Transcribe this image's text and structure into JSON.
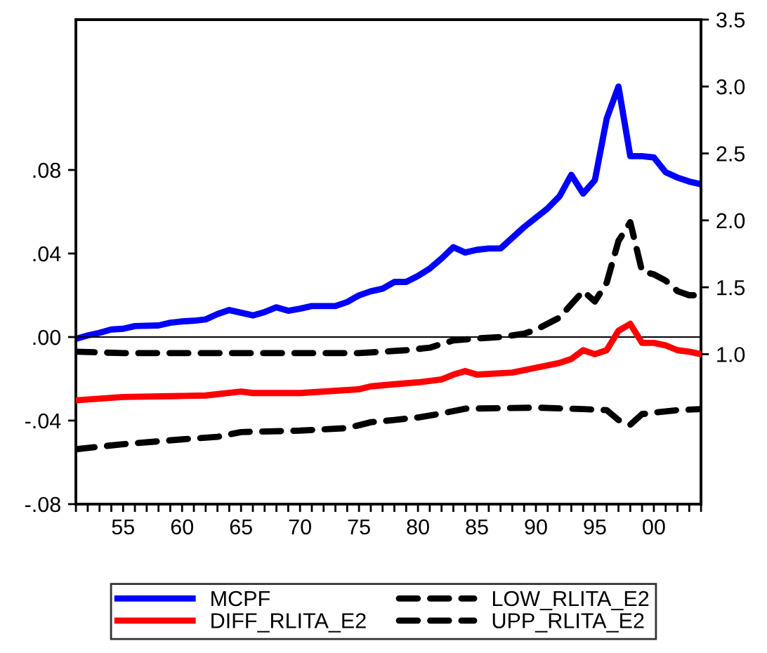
{
  "chart_data": {
    "type": "line",
    "xlim": [
      1951,
      2004
    ],
    "xticks": [
      {
        "value": 1951,
        "label": null
      },
      {
        "value": 1952,
        "label": null
      },
      {
        "value": 1953,
        "label": null
      },
      {
        "value": 1954,
        "label": null
      },
      {
        "value": 1955,
        "label": "55"
      },
      {
        "value": 1956,
        "label": null
      },
      {
        "value": 1957,
        "label": null
      },
      {
        "value": 1958,
        "label": null
      },
      {
        "value": 1959,
        "label": null
      },
      {
        "value": 1960,
        "label": "60"
      },
      {
        "value": 1961,
        "label": null
      },
      {
        "value": 1962,
        "label": null
      },
      {
        "value": 1963,
        "label": null
      },
      {
        "value": 1964,
        "label": null
      },
      {
        "value": 1965,
        "label": "65"
      },
      {
        "value": 1966,
        "label": null
      },
      {
        "value": 1967,
        "label": null
      },
      {
        "value": 1968,
        "label": null
      },
      {
        "value": 1969,
        "label": null
      },
      {
        "value": 1970,
        "label": "70"
      },
      {
        "value": 1971,
        "label": null
      },
      {
        "value": 1972,
        "label": null
      },
      {
        "value": 1973,
        "label": null
      },
      {
        "value": 1974,
        "label": null
      },
      {
        "value": 1975,
        "label": "75"
      },
      {
        "value": 1976,
        "label": null
      },
      {
        "value": 1977,
        "label": null
      },
      {
        "value": 1978,
        "label": null
      },
      {
        "value": 1979,
        "label": null
      },
      {
        "value": 1980,
        "label": "80"
      },
      {
        "value": 1981,
        "label": null
      },
      {
        "value": 1982,
        "label": null
      },
      {
        "value": 1983,
        "label": null
      },
      {
        "value": 1984,
        "label": null
      },
      {
        "value": 1985,
        "label": "85"
      },
      {
        "value": 1986,
        "label": null
      },
      {
        "value": 1987,
        "label": null
      },
      {
        "value": 1988,
        "label": null
      },
      {
        "value": 1989,
        "label": null
      },
      {
        "value": 1990,
        "label": "90"
      },
      {
        "value": 1991,
        "label": null
      },
      {
        "value": 1992,
        "label": null
      },
      {
        "value": 1993,
        "label": null
      },
      {
        "value": 1994,
        "label": null
      },
      {
        "value": 1995,
        "label": "95"
      },
      {
        "value": 1996,
        "label": null
      },
      {
        "value": 1997,
        "label": null
      },
      {
        "value": 1998,
        "label": null
      },
      {
        "value": 1999,
        "label": null
      },
      {
        "value": 2000,
        "label": "00"
      },
      {
        "value": 2001,
        "label": null
      },
      {
        "value": 2002,
        "label": null
      },
      {
        "value": 2003,
        "label": null
      },
      {
        "value": 2004,
        "label": null
      }
    ],
    "ylim": [
      -0.08,
      0.152
    ],
    "yticks": [
      {
        "value": -0.08,
        "label": "-.08"
      },
      {
        "value": -0.04,
        "label": "-.04"
      },
      {
        "value": 0,
        "label": ".00"
      },
      {
        "value": 0.04,
        "label": ".04"
      },
      {
        "value": 0.08,
        "label": ".08"
      }
    ],
    "y2lim": [
      -0.12,
      3.5
    ],
    "y2ticks": [
      {
        "value": 1.0,
        "label": "1.0"
      },
      {
        "value": 1.5,
        "label": "1.5"
      },
      {
        "value": 2.0,
        "label": "2.0"
      },
      {
        "value": 2.5,
        "label": "2.5"
      },
      {
        "value": 3.0,
        "label": "3.0"
      },
      {
        "value": 3.5,
        "label": "3.5"
      }
    ],
    "grid": false,
    "legend": "bottom",
    "marker": "none",
    "ref_lines": [
      {
        "axis": "y",
        "value": 0,
        "color": "#000000",
        "line_style": "solid"
      }
    ],
    "series": [
      {
        "name": "MCPF",
        "color": "#0000ff",
        "axis": "y2",
        "line_style": "solid",
        "x": [
          1951,
          1952,
          1953,
          1954,
          1955,
          1956,
          1958,
          1959,
          1960,
          1961,
          1962,
          1963,
          1964,
          1965,
          1966,
          1967,
          1968,
          1969,
          1970,
          1971,
          1972,
          1973,
          1974,
          1975,
          1976,
          1977,
          1978,
          1979,
          1980,
          1981,
          1982,
          1983,
          1984,
          1985,
          1986,
          1987,
          1988,
          1989,
          1990,
          1991,
          1992,
          1993,
          1994,
          1995,
          1996,
          1997,
          1998,
          1999,
          2000,
          2001,
          2002,
          2003,
          2004
        ],
        "values": [
          1.115,
          1.14,
          1.16,
          1.185,
          1.19,
          1.21,
          1.215,
          1.235,
          1.245,
          1.25,
          1.26,
          1.3,
          1.33,
          1.31,
          1.29,
          1.315,
          1.35,
          1.325,
          1.34,
          1.36,
          1.36,
          1.36,
          1.39,
          1.44,
          1.47,
          1.49,
          1.54,
          1.54,
          1.585,
          1.64,
          1.715,
          1.8,
          1.76,
          1.78,
          1.79,
          1.79,
          1.87,
          1.95,
          2.02,
          2.09,
          2.18,
          2.34,
          2.2,
          2.3,
          2.76,
          3.0,
          2.48,
          2.48,
          2.47,
          2.36,
          2.32,
          2.29,
          2.27
        ]
      },
      {
        "name": "DIFF_RLITA_E2",
        "color": "#ff0000",
        "axis": "y",
        "line_style": "solid",
        "x": [
          1951,
          1955,
          1960,
          1962,
          1965,
          1966,
          1970,
          1975,
          1976,
          1978,
          1980,
          1982,
          1983,
          1984,
          1985,
          1988,
          1990,
          1992,
          1993,
          1994,
          1995,
          1996,
          1997,
          1998,
          1999,
          2000,
          2001,
          2002,
          2003,
          2004
        ],
        "values": [
          -0.0303,
          -0.0287,
          -0.0282,
          -0.028,
          -0.0261,
          -0.0268,
          -0.0268,
          -0.025,
          -0.0236,
          -0.0226,
          -0.0217,
          -0.0203,
          -0.018,
          -0.0163,
          -0.018,
          -0.017,
          -0.0147,
          -0.0124,
          -0.0105,
          -0.0063,
          -0.0082,
          -0.0063,
          0.003,
          0.0063,
          -0.0028,
          -0.0028,
          -0.004,
          -0.0063,
          -0.007,
          -0.0082
        ]
      },
      {
        "name": "LOW_RLITA_E2",
        "color": "#000000",
        "axis": "y",
        "line_style": "dashed",
        "x": [
          1951,
          1955,
          1960,
          1963,
          1965,
          1970,
          1974,
          1976,
          1978,
          1980,
          1982,
          1984,
          1990,
          1994,
          1996,
          1997,
          1998,
          1999,
          2000,
          2002,
          2004
        ],
        "values": [
          -0.0537,
          -0.0513,
          -0.049,
          -0.0478,
          -0.0455,
          -0.0448,
          -0.0436,
          -0.0408,
          -0.0397,
          -0.0385,
          -0.0366,
          -0.0343,
          -0.0338,
          -0.0345,
          -0.035,
          -0.0397,
          -0.042,
          -0.0369,
          -0.0362,
          -0.035,
          -0.0345
        ]
      },
      {
        "name": "UPP_RLITA_E2",
        "color": "#000000",
        "axis": "y",
        "line_style": "dashed",
        "x": [
          1951,
          1955,
          1960,
          1965,
          1970,
          1975,
          1977,
          1979,
          1981,
          1983,
          1985,
          1987,
          1989,
          1990,
          1992,
          1994,
          1995,
          1996,
          1997,
          1998,
          1999,
          2000,
          2001,
          2002,
          2003,
          2004
        ],
        "values": [
          -0.007,
          -0.0077,
          -0.0077,
          -0.0077,
          -0.0077,
          -0.0077,
          -0.007,
          -0.0063,
          -0.0051,
          -0.0016,
          -0.0007,
          0.0,
          0.0016,
          0.0035,
          0.0093,
          0.022,
          0.017,
          0.026,
          0.046,
          0.055,
          0.0315,
          0.03,
          0.027,
          0.022,
          0.02,
          0.02
        ]
      }
    ]
  }
}
